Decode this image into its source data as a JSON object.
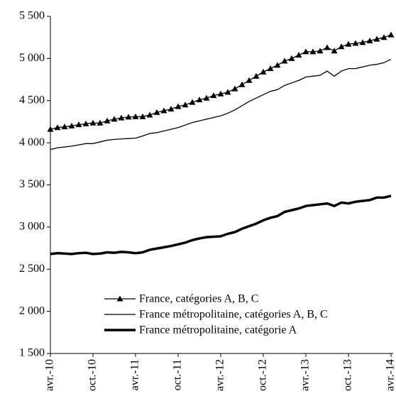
{
  "chart_data": {
    "type": "line",
    "categories": [
      "avr.-10",
      null,
      null,
      null,
      null,
      null,
      "oct.-10",
      null,
      null,
      null,
      null,
      null,
      "avr.-11",
      null,
      null,
      null,
      null,
      null,
      "oct.-11",
      null,
      null,
      null,
      null,
      null,
      "avr.-12",
      null,
      null,
      null,
      null,
      null,
      "oct.-12",
      null,
      null,
      null,
      null,
      null,
      "avr.-13",
      null,
      null,
      null,
      null,
      null,
      "oct.-13",
      null,
      null,
      null,
      null,
      null,
      "avr.-14"
    ],
    "series": [
      {
        "name": "France, catégories A, B, C",
        "color": "#000000",
        "marker": "triangle",
        "values": [
          4160,
          4180,
          4190,
          4200,
          4215,
          4225,
          4235,
          4235,
          4260,
          4280,
          4295,
          4305,
          4310,
          4310,
          4330,
          4360,
          4380,
          4400,
          4430,
          4450,
          4480,
          4510,
          4530,
          4560,
          4580,
          4600,
          4640,
          4690,
          4740,
          4790,
          4840,
          4880,
          4920,
          4970,
          5000,
          5040,
          5080,
          5080,
          5090,
          5130,
          5090,
          5140,
          5170,
          5180,
          5190,
          5210,
          5230,
          5250,
          5280
        ]
      },
      {
        "name": "France métropolitaine, catégories A, B, C",
        "color": "#000000",
        "values": [
          3920,
          3940,
          3950,
          3960,
          3975,
          3990,
          3990,
          4010,
          4030,
          4040,
          4045,
          4050,
          4055,
          4080,
          4110,
          4120,
          4140,
          4160,
          4180,
          4210,
          4240,
          4260,
          4280,
          4300,
          4320,
          4350,
          4390,
          4440,
          4490,
          4530,
          4570,
          4610,
          4630,
          4680,
          4710,
          4740,
          4780,
          4790,
          4800,
          4850,
          4790,
          4850,
          4880,
          4880,
          4900,
          4920,
          4930,
          4950,
          4990
        ]
      },
      {
        "name": "France métropolitaine, catégorie A",
        "color": "#000000",
        "values": [
          2680,
          2690,
          2685,
          2680,
          2690,
          2695,
          2680,
          2685,
          2700,
          2695,
          2705,
          2700,
          2690,
          2700,
          2730,
          2745,
          2760,
          2775,
          2795,
          2815,
          2845,
          2865,
          2880,
          2885,
          2890,
          2920,
          2940,
          2980,
          3010,
          3040,
          3080,
          3110,
          3130,
          3180,
          3200,
          3220,
          3250,
          3260,
          3270,
          3280,
          3250,
          3290,
          3280,
          3300,
          3310,
          3320,
          3350,
          3350,
          3370
        ]
      }
    ],
    "ylim": [
      1500,
      5500
    ],
    "yticks": [
      {
        "value": 1500,
        "label": "1 500"
      },
      {
        "value": 2000,
        "label": "2 000"
      },
      {
        "value": 2500,
        "label": "2 500"
      },
      {
        "value": 3000,
        "label": "3 000"
      },
      {
        "value": 3500,
        "label": "3 500"
      },
      {
        "value": 4000,
        "label": "4 000"
      },
      {
        "value": 4500,
        "label": "4 500"
      },
      {
        "value": 5000,
        "label": "5 000"
      },
      {
        "value": 5500,
        "label": "5 500"
      }
    ],
    "grid": false,
    "legend": "lower-right"
  }
}
